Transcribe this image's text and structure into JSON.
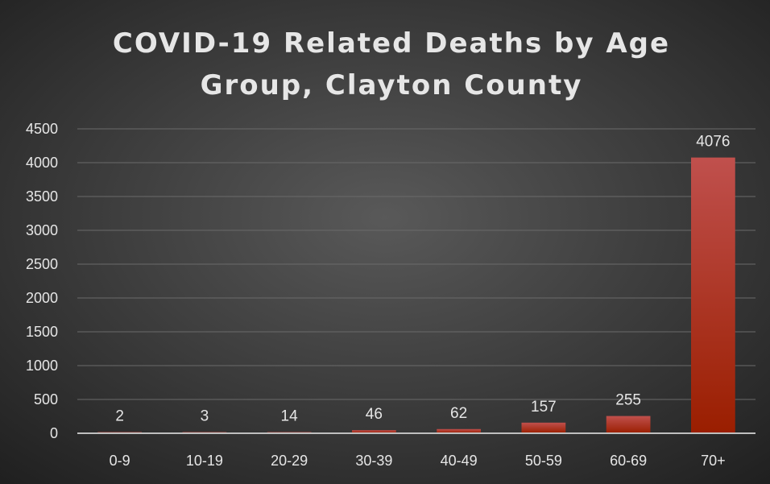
{
  "chart_data": {
    "type": "bar",
    "title_lines": [
      "COVID-19 Related Deaths by Age",
      "Group, Clayton County"
    ],
    "categories": [
      "0-9",
      "10-19",
      "20-29",
      "30-39",
      "40-49",
      "50-59",
      "60-69",
      "70+"
    ],
    "values": [
      2,
      3,
      14,
      46,
      62,
      157,
      255,
      4076
    ],
    "xlabel": "",
    "ylabel": "",
    "ylim": [
      0,
      4500
    ],
    "yticks": [
      0,
      500,
      1000,
      1500,
      2000,
      2500,
      3000,
      3500,
      4000,
      4500
    ],
    "data_labels": true,
    "grid": true,
    "legend": "none",
    "colors": {
      "bar_top": "#c0504d",
      "bar_bottom": "#9a1e00",
      "background_center": "#595959",
      "background_edge": "#1f1f1f",
      "text": "#e6e6e6"
    }
  }
}
